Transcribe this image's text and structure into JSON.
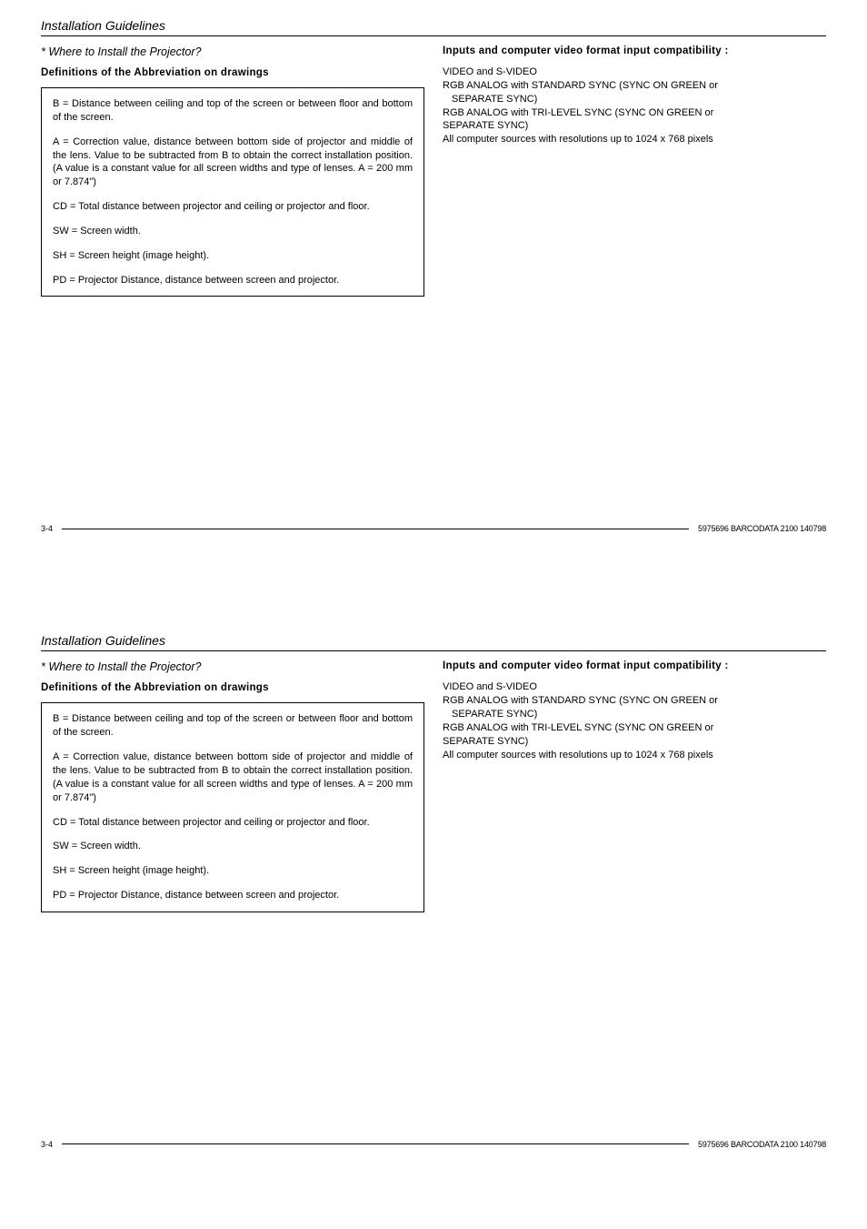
{
  "header_title": "Installation Guidelines",
  "sub_heading": "* Where to Install the Projector?",
  "definitions_heading": "Definitions of the Abbreviation on drawings",
  "definitions": {
    "b": "B = Distance between ceiling and top of the screen or between floor and bottom of the screen.",
    "a": "A = Correction value, distance between bottom side of projector and middle of the lens. Value to be subtracted from B to obtain the correct installation position. (A value is a constant value for all screen widths and type of lenses.  A = 200 mm or 7.874\")",
    "cd": "CD = Total distance between projector and ceiling or projector and floor.",
    "sw": "SW = Screen width.",
    "sh": "SH = Screen height (image height).",
    "pd": "PD = Projector Distance, distance between screen and projector."
  },
  "inputs_heading": "Inputs and computer video format input compatibility :",
  "inputs": {
    "line1": "VIDEO and S-VIDEO",
    "line2": "RGB ANALOG with STANDARD SYNC (SYNC ON GREEN or",
    "line3": "SEPARATE SYNC)",
    "line4": "RGB ANALOG with TRI-LEVEL SYNC (SYNC ON GREEN or",
    "line5": "SEPARATE SYNC)",
    "line6": "All computer sources with resolutions up to 1024 x 768 pixels"
  },
  "footer": {
    "page": "3-4",
    "code": "5975696 BARCODATA 2100 140798"
  }
}
